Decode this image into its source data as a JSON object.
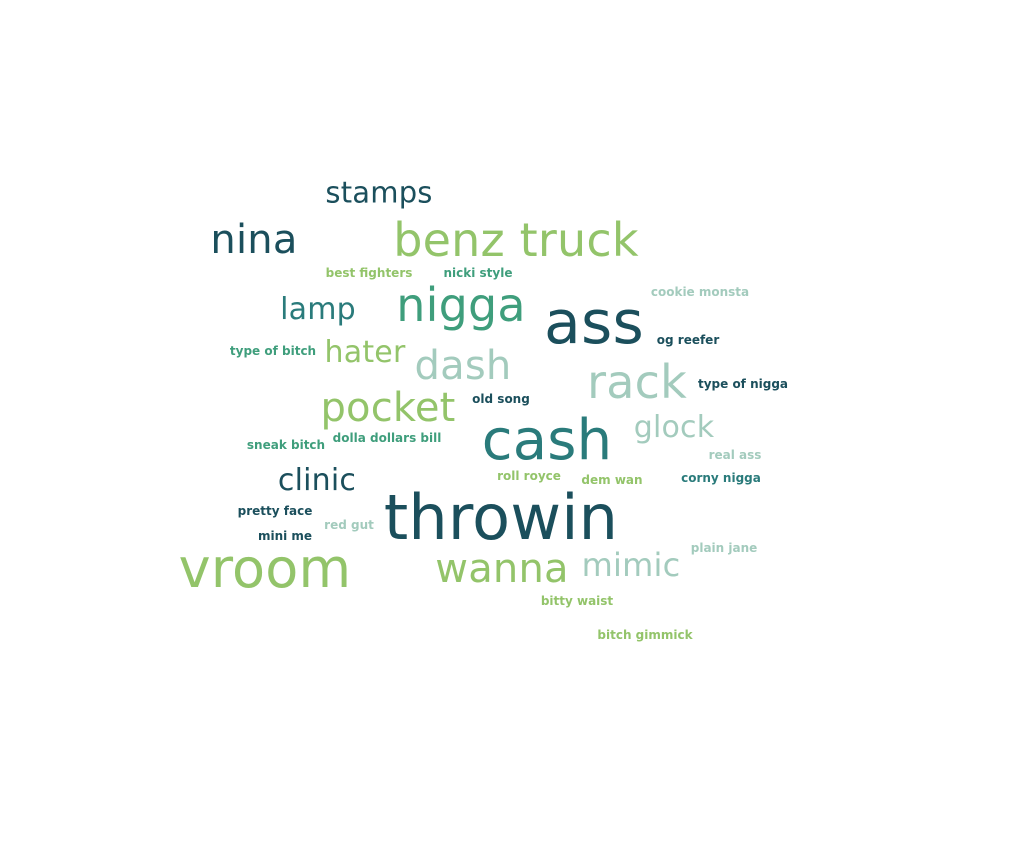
{
  "palette": {
    "dark_teal": "#1b4f5c",
    "teal": "#2a7b7b",
    "green_teal": "#3f9e7c",
    "light_green": "#93c46a",
    "pale_teal": "#a3cbbd"
  },
  "words": [
    {
      "text": "stamps",
      "color": "#1b4f5c"
    },
    {
      "text": "nina",
      "color": "#1b4f5c"
    },
    {
      "text": "benz truck",
      "color": "#93c46a"
    },
    {
      "text": "best fighters",
      "color": "#93c46a"
    },
    {
      "text": "nicki style",
      "color": "#3f9e7c"
    },
    {
      "text": "cookie monsta",
      "color": "#a3cbbd"
    },
    {
      "text": "lamp",
      "color": "#2a7b7b"
    },
    {
      "text": "nigga",
      "color": "#3f9e7c"
    },
    {
      "text": "ass",
      "color": "#1b4f5c"
    },
    {
      "text": "og reefer",
      "color": "#1b4f5c"
    },
    {
      "text": "type of bitch",
      "color": "#3f9e7c"
    },
    {
      "text": "hater",
      "color": "#93c46a"
    },
    {
      "text": "dash",
      "color": "#a3cbbd"
    },
    {
      "text": "rack",
      "color": "#a3cbbd"
    },
    {
      "text": "type of nigga",
      "color": "#1b4f5c"
    },
    {
      "text": "pocket",
      "color": "#93c46a"
    },
    {
      "text": "old song",
      "color": "#1b4f5c"
    },
    {
      "text": "glock",
      "color": "#a3cbbd"
    },
    {
      "text": "sneak bitch",
      "color": "#3f9e7c"
    },
    {
      "text": "dolla dollars bill",
      "color": "#3f9e7c"
    },
    {
      "text": "cash",
      "color": "#2a7b7b"
    },
    {
      "text": "real ass",
      "color": "#a3cbbd"
    },
    {
      "text": "clinic",
      "color": "#1b4f5c"
    },
    {
      "text": "roll royce",
      "color": "#93c46a"
    },
    {
      "text": "dem wan",
      "color": "#93c46a"
    },
    {
      "text": "corny nigga",
      "color": "#2a7b7b"
    },
    {
      "text": "pretty face",
      "color": "#1b4f5c"
    },
    {
      "text": "throwin",
      "color": "#1b4f5c"
    },
    {
      "text": "red gut",
      "color": "#a3cbbd"
    },
    {
      "text": "mini me",
      "color": "#1b4f5c"
    },
    {
      "text": "plain jane",
      "color": "#a3cbbd"
    },
    {
      "text": "vroom",
      "color": "#93c46a"
    },
    {
      "text": "wanna",
      "color": "#93c46a"
    },
    {
      "text": "mimic",
      "color": "#a3cbbd"
    },
    {
      "text": "bitty waist",
      "color": "#93c46a"
    },
    {
      "text": "bitch gimmick",
      "color": "#93c46a"
    }
  ]
}
